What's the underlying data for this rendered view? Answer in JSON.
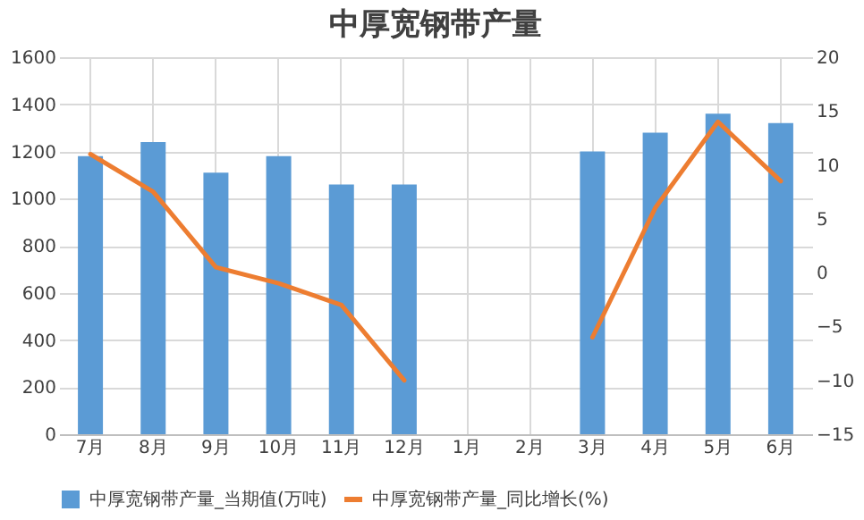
{
  "chart_data": {
    "type": "bar",
    "title": "中厚宽钢带产量",
    "categories": [
      "7月",
      "8月",
      "9月",
      "10月",
      "11月",
      "12月",
      "1月",
      "2月",
      "3月",
      "4月",
      "5月",
      "6月"
    ],
    "series": [
      {
        "name": "中厚宽钢带产量_当期值(万吨)",
        "color": "#5b9bd5",
        "values": [
          1180,
          1240,
          1110,
          1180,
          1060,
          1060,
          null,
          null,
          1200,
          1280,
          1360,
          1320
        ]
      },
      {
        "name": "中厚宽钢带产量_同比增长(%)",
        "type": "line",
        "axis": "y2",
        "color": "#ed7d31",
        "values": [
          11,
          7.5,
          0.5,
          -1,
          -3,
          -10,
          null,
          null,
          -6,
          6,
          14,
          8.5
        ]
      }
    ],
    "ylim": [
      0,
      1600
    ],
    "yticks": [
      0,
      200,
      400,
      600,
      800,
      1000,
      1200,
      1400,
      1600
    ],
    "y2lim": [
      -15,
      20
    ],
    "y2ticks": [
      -15,
      -10,
      -5,
      0,
      5,
      10,
      15,
      20
    ],
    "grid": true,
    "legend": "bottom",
    "marker": "none",
    "line_style": "solid"
  }
}
